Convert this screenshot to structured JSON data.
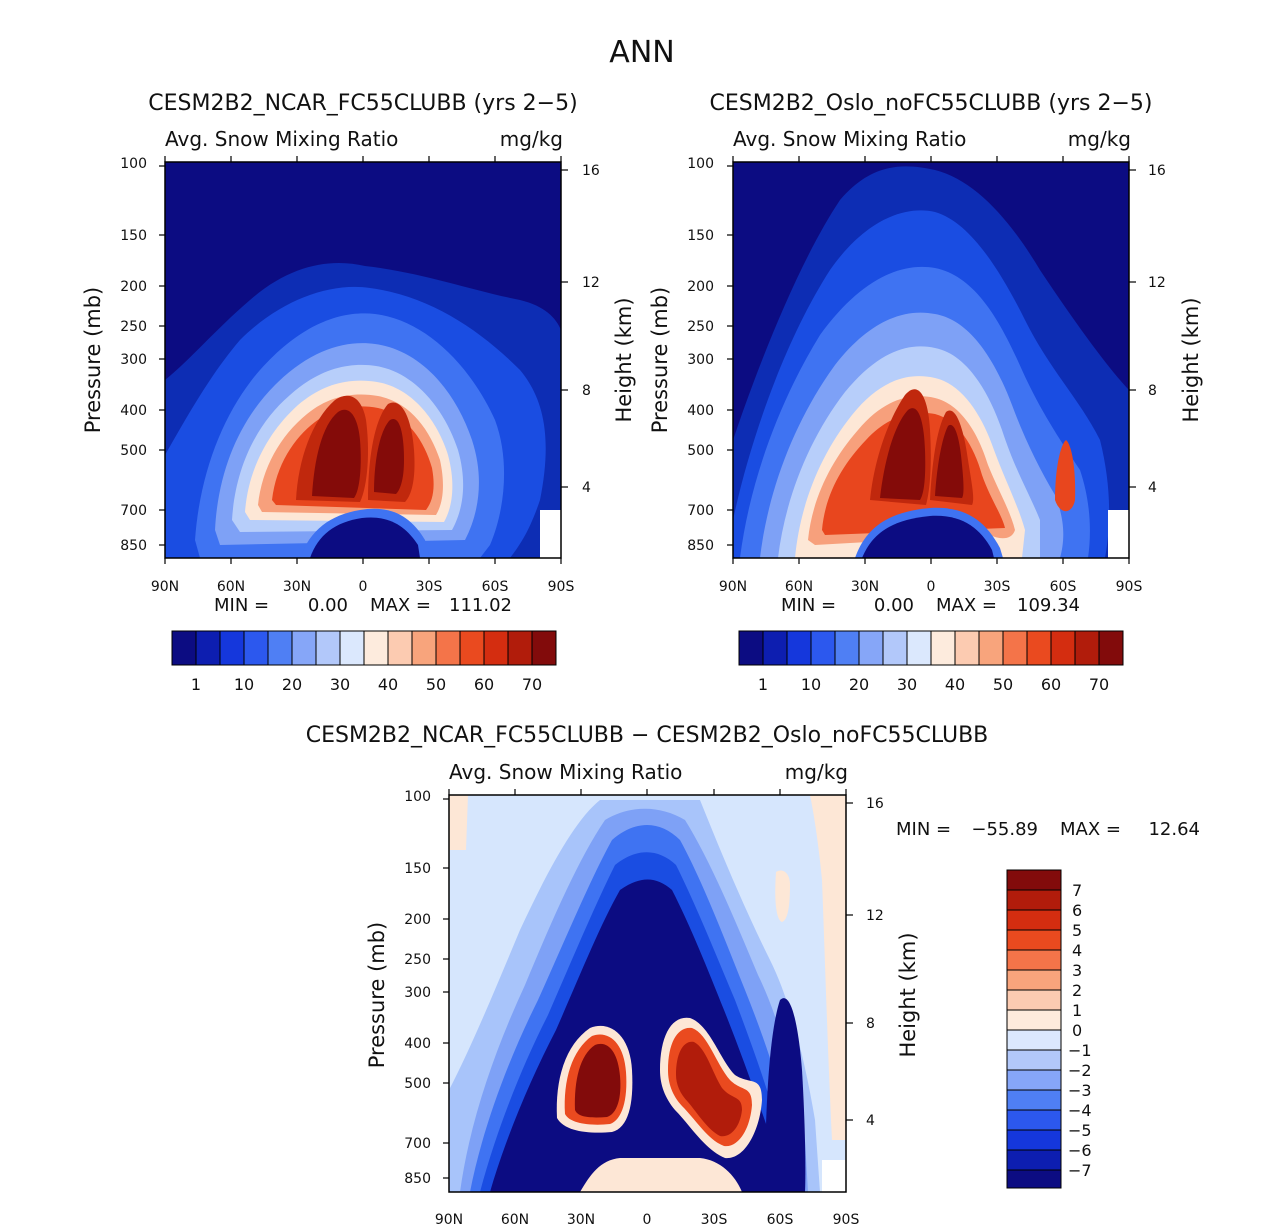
{
  "figure_title": "ANN",
  "chart_data": [
    {
      "type": "contour",
      "title": "CESM2B2_NCAR_FC55CLUBB (yrs 2-5)",
      "title_display": "CESM2B2_NCAR_FC55CLUBB (yrs 2−5)",
      "variable": "Avg. Snow Mixing Ratio",
      "units": "mg/kg",
      "xlabel": "",
      "ylabel": "Pressure (mb)",
      "y2label": "Height (km)",
      "x_ticks": [
        "90N",
        "60N",
        "30N",
        "0",
        "30S",
        "60S",
        "90S"
      ],
      "y_ticks": [
        "100",
        "150",
        "200",
        "250",
        "300",
        "400",
        "500",
        "700",
        "850"
      ],
      "y_tick_values": [
        100,
        150,
        200,
        250,
        300,
        400,
        500,
        700,
        850
      ],
      "y2_ticks": [
        "16",
        "12",
        "8",
        "4"
      ],
      "ylim": [
        1000,
        100
      ],
      "min_label": "MIN =",
      "min_value": "0.00",
      "max_label": "MAX =",
      "max_value": "111.02",
      "colorbar_labels": [
        "1",
        "10",
        "20",
        "30",
        "40",
        "50",
        "60",
        "70"
      ],
      "features": [
        {
          "lat": -12,
          "plev": 445,
          "value": 95
        },
        {
          "lat": -6,
          "plev": 585,
          "value": 60
        },
        {
          "lat": 10,
          "plev": 460,
          "value": 80
        },
        {
          "lat": 32,
          "plev": 605,
          "value": 55
        },
        {
          "lat": 58,
          "plev": 520,
          "value": 8
        }
      ]
    },
    {
      "type": "contour",
      "title": "CESM2B2_Oslo_noFC55CLUBB (yrs 2-5)",
      "title_display": "CESM2B2_Oslo_noFC55CLUBB (yrs 2−5)",
      "variable": "Avg. Snow Mixing Ratio",
      "units": "mg/kg",
      "xlabel": "",
      "ylabel": "Pressure (mb)",
      "y2label": "Height (km)",
      "x_ticks": [
        "90N",
        "60N",
        "30N",
        "0",
        "30S",
        "60S",
        "90S"
      ],
      "y_ticks": [
        "100",
        "150",
        "200",
        "250",
        "300",
        "400",
        "500",
        "700",
        "850"
      ],
      "y_tick_values": [
        100,
        150,
        200,
        250,
        300,
        400,
        500,
        700,
        850
      ],
      "y2_ticks": [
        "16",
        "12",
        "8",
        "4"
      ],
      "ylim": [
        1000,
        100
      ],
      "min_label": "MIN =",
      "min_value": "0.00",
      "max_label": "MAX =",
      "max_value": "109.34",
      "colorbar_labels": [
        "1",
        "10",
        "20",
        "30",
        "40",
        "50",
        "60",
        "70"
      ],
      "features": [
        {
          "lat": -10,
          "plev": 430,
          "value": 95
        },
        {
          "lat": 8,
          "plev": 470,
          "value": 85
        },
        {
          "lat": -28,
          "plev": 640,
          "value": 45
        },
        {
          "lat": 30,
          "plev": 640,
          "value": 55
        },
        {
          "lat": 60,
          "plev": 590,
          "value": 45
        }
      ]
    },
    {
      "type": "contour",
      "title": "CESM2B2_NCAR_FC55CLUBB - CESM2B2_Oslo_noFC55CLUBB",
      "title_display": "CESM2B2_NCAR_FC55CLUBB − CESM2B2_Oslo_noFC55CLUBB",
      "variable": "Avg. Snow Mixing Ratio",
      "units": "mg/kg",
      "xlabel": "",
      "ylabel": "Pressure (mb)",
      "y2label": "Height (km)",
      "x_ticks": [
        "90N",
        "60N",
        "30N",
        "0",
        "30S",
        "60S",
        "90S"
      ],
      "y_ticks": [
        "100",
        "150",
        "200",
        "250",
        "300",
        "400",
        "500",
        "700",
        "850"
      ],
      "y_tick_values": [
        100,
        150,
        200,
        250,
        300,
        400,
        500,
        700,
        850
      ],
      "y2_ticks": [
        "16",
        "12",
        "8",
        "4"
      ],
      "ylim": [
        1000,
        100
      ],
      "min_label": "MIN =",
      "min_value": "−55.89",
      "max_label": "MAX =",
      "max_value": "12.64",
      "colorbar_labels": [
        "7",
        "6",
        "5",
        "4",
        "3",
        "2",
        "1",
        "0",
        "−1",
        "−2",
        "−3",
        "−4",
        "−5",
        "−6",
        "−7"
      ],
      "features": [
        {
          "lat": -20,
          "plev": 500,
          "value": 10
        },
        {
          "lat": 18,
          "plev": 490,
          "value": 10
        },
        {
          "lat": 38,
          "plev": 530,
          "value": 7
        },
        {
          "lat": -5,
          "plev": 280,
          "value": -8
        },
        {
          "lat": 60,
          "plev": 450,
          "value": -8
        }
      ]
    }
  ]
}
